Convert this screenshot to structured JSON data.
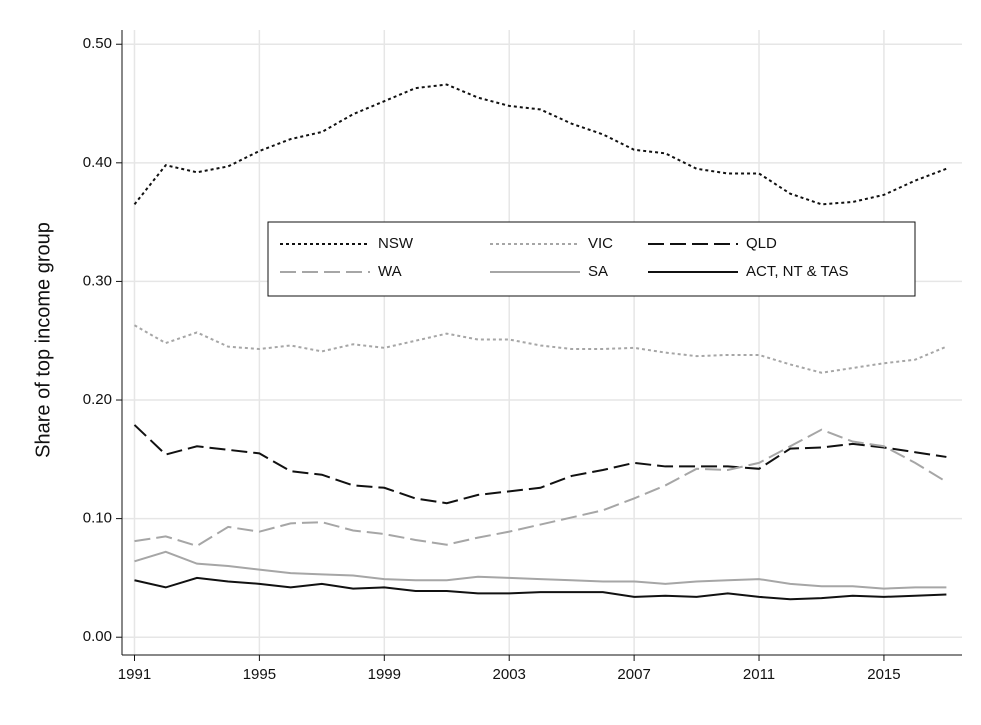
{
  "chart_data": {
    "type": "line",
    "y_label": "Share of top income group",
    "x": [
      1991,
      1992,
      1993,
      1994,
      1995,
      1996,
      1997,
      1998,
      1999,
      2000,
      2001,
      2002,
      2003,
      2004,
      2005,
      2006,
      2007,
      2008,
      2009,
      2010,
      2011,
      2012,
      2013,
      2014,
      2015,
      2016,
      2017
    ],
    "xlim": [
      1990.6,
      2017.5
    ],
    "xticks": [
      1991,
      1995,
      1999,
      2003,
      2007,
      2011,
      2015
    ],
    "ylim": [
      -0.015,
      0.512
    ],
    "yticks": [
      {
        "value": 0,
        "label": "0.00"
      },
      {
        "value": 0.1,
        "label": "0.10"
      },
      {
        "value": 0.2,
        "label": "0.20"
      },
      {
        "value": 0.3,
        "label": "0.30"
      },
      {
        "value": 0.4,
        "label": "0.40"
      },
      {
        "value": 0.5,
        "label": "0.50"
      }
    ],
    "grid": true,
    "series": [
      {
        "name": "NSW",
        "color": "#111111",
        "dash": "3,3",
        "values": [
          0.365,
          0.398,
          0.392,
          0.397,
          0.41,
          0.42,
          0.426,
          0.441,
          0.452,
          0.463,
          0.466,
          0.455,
          0.448,
          0.445,
          0.433,
          0.424,
          0.411,
          0.408,
          0.395,
          0.391,
          0.391,
          0.374,
          0.365,
          0.367,
          0.373,
          0.385,
          0.395
        ]
      },
      {
        "name": "VIC",
        "color": "#a6a6a6",
        "dash": "3,3",
        "values": [
          0.263,
          0.248,
          0.257,
          0.245,
          0.243,
          0.246,
          0.241,
          0.247,
          0.244,
          0.25,
          0.256,
          0.251,
          0.251,
          0.246,
          0.243,
          0.243,
          0.244,
          0.24,
          0.237,
          0.238,
          0.238,
          0.23,
          0.223,
          0.227,
          0.231,
          0.234,
          0.245
        ]
      },
      {
        "name": "QLD",
        "color": "#111111",
        "dash": "16,6",
        "values": [
          0.179,
          0.154,
          0.161,
          0.158,
          0.155,
          0.14,
          0.137,
          0.128,
          0.126,
          0.117,
          0.113,
          0.12,
          0.123,
          0.126,
          0.136,
          0.141,
          0.147,
          0.144,
          0.144,
          0.144,
          0.142,
          0.159,
          0.16,
          0.163,
          0.16,
          0.156,
          0.152
        ]
      },
      {
        "name": "WA",
        "color": "#a6a6a6",
        "dash": "16,6",
        "values": [
          0.081,
          0.085,
          0.077,
          0.093,
          0.089,
          0.096,
          0.097,
          0.09,
          0.087,
          0.082,
          0.078,
          0.084,
          0.089,
          0.095,
          0.101,
          0.107,
          0.117,
          0.128,
          0.142,
          0.141,
          0.147,
          0.161,
          0.175,
          0.165,
          0.161,
          0.147,
          0.131
        ]
      },
      {
        "name": "SA",
        "color": "#a6a6a6",
        "dash": "none",
        "values": [
          0.064,
          0.072,
          0.062,
          0.06,
          0.057,
          0.054,
          0.053,
          0.052,
          0.049,
          0.048,
          0.048,
          0.051,
          0.05,
          0.049,
          0.048,
          0.047,
          0.047,
          0.045,
          0.047,
          0.048,
          0.049,
          0.045,
          0.043,
          0.043,
          0.041,
          0.042,
          0.042
        ]
      },
      {
        "name": "ACT, NT & TAS",
        "color": "#111111",
        "dash": "none",
        "values": [
          0.048,
          0.042,
          0.05,
          0.047,
          0.045,
          0.042,
          0.045,
          0.041,
          0.042,
          0.039,
          0.039,
          0.037,
          0.037,
          0.038,
          0.038,
          0.038,
          0.034,
          0.035,
          0.034,
          0.037,
          0.034,
          0.032,
          0.033,
          0.035,
          0.034,
          0.035,
          0.036
        ]
      }
    ]
  }
}
